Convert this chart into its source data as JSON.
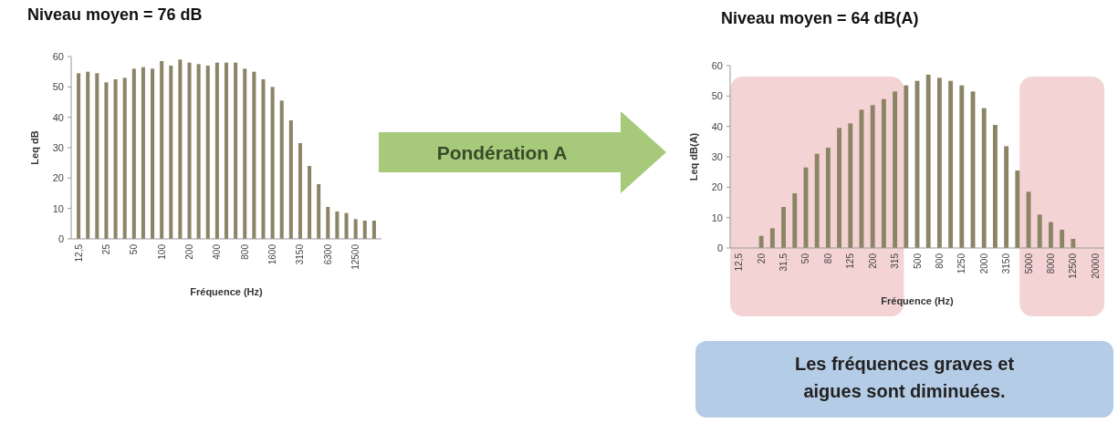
{
  "chart_data": [
    {
      "type": "bar",
      "title": "Niveau moyen = 76 dB",
      "xlabel": "Fréquence (Hz)",
      "ylabel": "Leq dB",
      "categories": [
        "12,5",
        null,
        null,
        "25",
        null,
        null,
        "50",
        null,
        null,
        "100",
        null,
        null,
        "200",
        null,
        null,
        "400",
        null,
        null,
        "800",
        null,
        null,
        "1600",
        null,
        null,
        "3150",
        null,
        null,
        "6300",
        null,
        null,
        "12500",
        null,
        null
      ],
      "values": [
        54.5,
        55,
        54.5,
        51.5,
        52.5,
        53,
        56,
        56.5,
        56,
        58.5,
        57,
        59,
        58,
        57.5,
        57,
        58,
        58,
        58,
        56,
        55,
        52.5,
        50,
        45.5,
        39,
        31.5,
        24,
        18,
        10.5,
        9,
        8.5,
        6.5,
        6,
        6
      ],
      "color": "#8c8466",
      "ylim": [
        0,
        60
      ],
      "yticks": [
        0,
        10,
        20,
        30,
        40,
        50,
        60
      ],
      "annotations": [
        "Pondération A"
      ]
    },
    {
      "type": "bar",
      "title": "Niveau moyen = 64 dB(A)",
      "xlabel": "Fréquence (Hz)",
      "ylabel": "Leq dB(A)",
      "categories": [
        "12,5",
        null,
        "20",
        null,
        "31,5",
        null,
        "50",
        null,
        "80",
        null,
        "125",
        null,
        "200",
        null,
        "315",
        null,
        "500",
        null,
        "800",
        null,
        "1250",
        null,
        "2000",
        null,
        "3150",
        null,
        "5000",
        null,
        "8000",
        null,
        "12500",
        null,
        "20000"
      ],
      "values": [
        0,
        0,
        4,
        6.5,
        13.5,
        18,
        26.5,
        31,
        33,
        39.5,
        41,
        45.5,
        47,
        49,
        51.5,
        53.5,
        55,
        57,
        56,
        55,
        53.5,
        51.5,
        46,
        40.5,
        33.5,
        25.5,
        18.5,
        11,
        8.5,
        6,
        3,
        0,
        0
      ],
      "color": "#8c8466",
      "ylim": [
        0,
        60
      ],
      "yticks": [
        0,
        10,
        20,
        30,
        40,
        50,
        60
      ],
      "bands": [
        {
          "axis": "x",
          "from": "12,5",
          "to": "315",
          "color": "#f3d3d3"
        },
        {
          "axis": "x",
          "from": "5000",
          "to": "20000",
          "color": "#f3d3d3"
        }
      ],
      "annotations": [
        "Les fréquences graves et aigues sont diminuées."
      ]
    }
  ]
}
